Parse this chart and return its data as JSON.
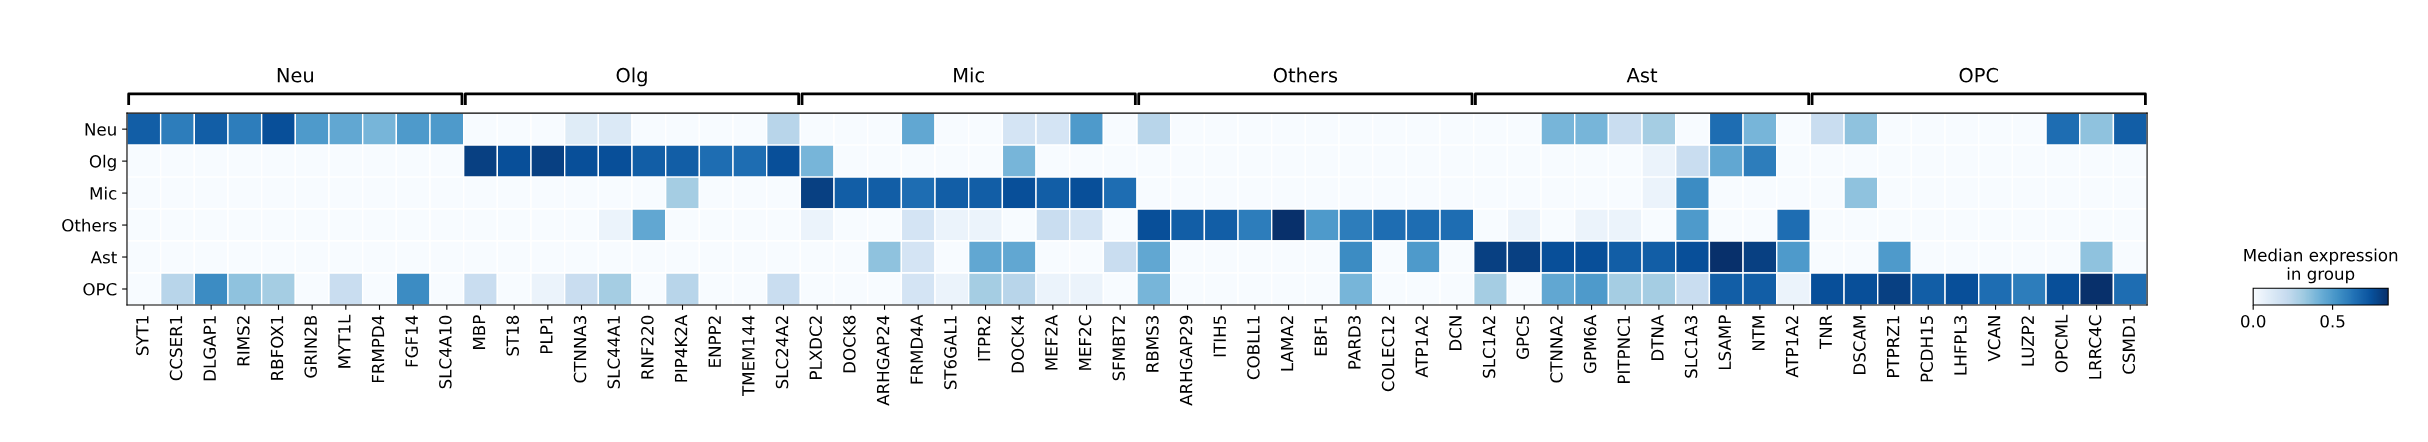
{
  "chart_data": {
    "type": "heatmap",
    "categories": [
      "SYT1",
      "CCSER1",
      "DLGAP1",
      "RIMS2",
      "RBFOX1",
      "GRIN2B",
      "MYT1L",
      "FRMPD4",
      "FGF14",
      "SLC4A10",
      "MBP",
      "ST18",
      "PLP1",
      "CTNNA3",
      "SLC44A1",
      "RNF220",
      "PIP4K2A",
      "ENPP2",
      "TMEM144",
      "SLC24A2",
      "PLXDC2",
      "DOCK8",
      "ARHGAP24",
      "FRMD4A",
      "ST6GAL1",
      "ITPR2",
      "DOCK4",
      "MEF2A",
      "MEF2C",
      "SFMBT2",
      "RBMS3",
      "ARHGAP29",
      "ITIH5",
      "COBLL1",
      "LAMA2",
      "EBF1",
      "PARD3",
      "COLEC12",
      "ATP1A2",
      "DCN",
      "SLC1A2",
      "GPC5",
      "CTNNA2",
      "GPM6A",
      "PITPNC1",
      "DTNA",
      "SLC1A3",
      "LSAMP",
      "NTM",
      "ATP1A2",
      "TNR",
      "DSCAM",
      "PTPRZ1",
      "PCDH15",
      "LHFPL3",
      "VCAN",
      "LUZP2",
      "OPCML",
      "LRRC4C",
      "CSMD1"
    ],
    "y_categories": [
      "Neu",
      "Olg",
      "Mic",
      "Others",
      "Ast",
      "OPC"
    ],
    "cells": [
      [
        0.7,
        0.6,
        0.7,
        0.6,
        0.75,
        0.5,
        0.45,
        0.4,
        0.5,
        0.5,
        0,
        0,
        0,
        0.1,
        0.12,
        0,
        0,
        0,
        0,
        0.25,
        0,
        0,
        0,
        0.45,
        0,
        0,
        0.15,
        0.15,
        0.5,
        0,
        0.25,
        0,
        0,
        0,
        0,
        0,
        0,
        0,
        0,
        0,
        0,
        0,
        0.4,
        0.4,
        0.2,
        0.3,
        0,
        0.65,
        0.4,
        0,
        0.2,
        0.35,
        0,
        0,
        0,
        0,
        0,
        0.65,
        0.35,
        0.7
      ],
      [
        0,
        0,
        0,
        0,
        0,
        0,
        0,
        0,
        0,
        0,
        0.8,
        0.75,
        0.8,
        0.75,
        0.75,
        0.7,
        0.7,
        0.65,
        0.65,
        0.75,
        0.4,
        0,
        0,
        0,
        0,
        0,
        0.4,
        0,
        0,
        0,
        0,
        0,
        0,
        0,
        0,
        0,
        0,
        0,
        0,
        0,
        0,
        0,
        0,
        0,
        0,
        0.05,
        0.2,
        0.45,
        0.6,
        0,
        0,
        0,
        0,
        0,
        0,
        0,
        0,
        0,
        0,
        0
      ],
      [
        0,
        0,
        0,
        0,
        0,
        0,
        0,
        0,
        0,
        0,
        0,
        0,
        0,
        0,
        0,
        0,
        0.3,
        0,
        0,
        0,
        0.8,
        0.7,
        0.7,
        0.65,
        0.7,
        0.7,
        0.75,
        0.7,
        0.75,
        0.65,
        0,
        0,
        0,
        0,
        0,
        0,
        0,
        0,
        0,
        0,
        0,
        0,
        0,
        0,
        0,
        0.05,
        0.55,
        0,
        0,
        0,
        0,
        0.35,
        0,
        0,
        0,
        0,
        0,
        0,
        0,
        0
      ],
      [
        0,
        0,
        0,
        0,
        0,
        0,
        0,
        0,
        0,
        0,
        0,
        0,
        0,
        0,
        0.05,
        0.45,
        0,
        0,
        0,
        0,
        0.05,
        0,
        0,
        0.15,
        0.05,
        0.05,
        0,
        0.2,
        0.15,
        0,
        0.75,
        0.7,
        0.7,
        0.6,
        0.85,
        0.5,
        0.6,
        0.65,
        0.65,
        0.65,
        0,
        0.05,
        0,
        0.05,
        0.05,
        0,
        0.5,
        0,
        0,
        0.65,
        0,
        0,
        0,
        0,
        0,
        0,
        0,
        0,
        0,
        0
      ],
      [
        0,
        0,
        0,
        0,
        0,
        0,
        0,
        0,
        0,
        0,
        0,
        0,
        0,
        0,
        0,
        0,
        0,
        0,
        0,
        0,
        0,
        0,
        0.35,
        0.15,
        0,
        0.45,
        0.45,
        0,
        0,
        0.2,
        0.45,
        0,
        0,
        0,
        0,
        0,
        0.55,
        0,
        0.5,
        0,
        0.8,
        0.8,
        0.75,
        0.75,
        0.7,
        0.7,
        0.75,
        0.85,
        0.8,
        0.5,
        0,
        0,
        0.5,
        0,
        0,
        0,
        0,
        0,
        0.35,
        0
      ],
      [
        0,
        0.25,
        0.55,
        0.35,
        0.3,
        0,
        0.2,
        0,
        0.55,
        0,
        0.2,
        0,
        0.05,
        0.2,
        0.3,
        0,
        0.25,
        0,
        0,
        0.2,
        0,
        0,
        0,
        0.15,
        0.05,
        0.3,
        0.25,
        0.05,
        0.05,
        0,
        0.4,
        0,
        0,
        0,
        0,
        0,
        0.4,
        0,
        0,
        0,
        0.3,
        0,
        0.45,
        0.5,
        0.3,
        0.3,
        0.2,
        0.7,
        0.7,
        0.05,
        0.75,
        0.75,
        0.8,
        0.7,
        0.75,
        0.65,
        0.6,
        0.75,
        0.85,
        0.65
      ]
    ],
    "clim": [
      0,
      0.85
    ],
    "cticks": [
      {
        "value": 0,
        "label": "0.0"
      },
      {
        "value": 0.5,
        "label": "0.5"
      }
    ],
    "clabel": "Median expression\nin group",
    "annotations": [
      "Neu",
      "Olg",
      "Mic",
      "Others",
      "Ast",
      "OPC"
    ]
  }
}
